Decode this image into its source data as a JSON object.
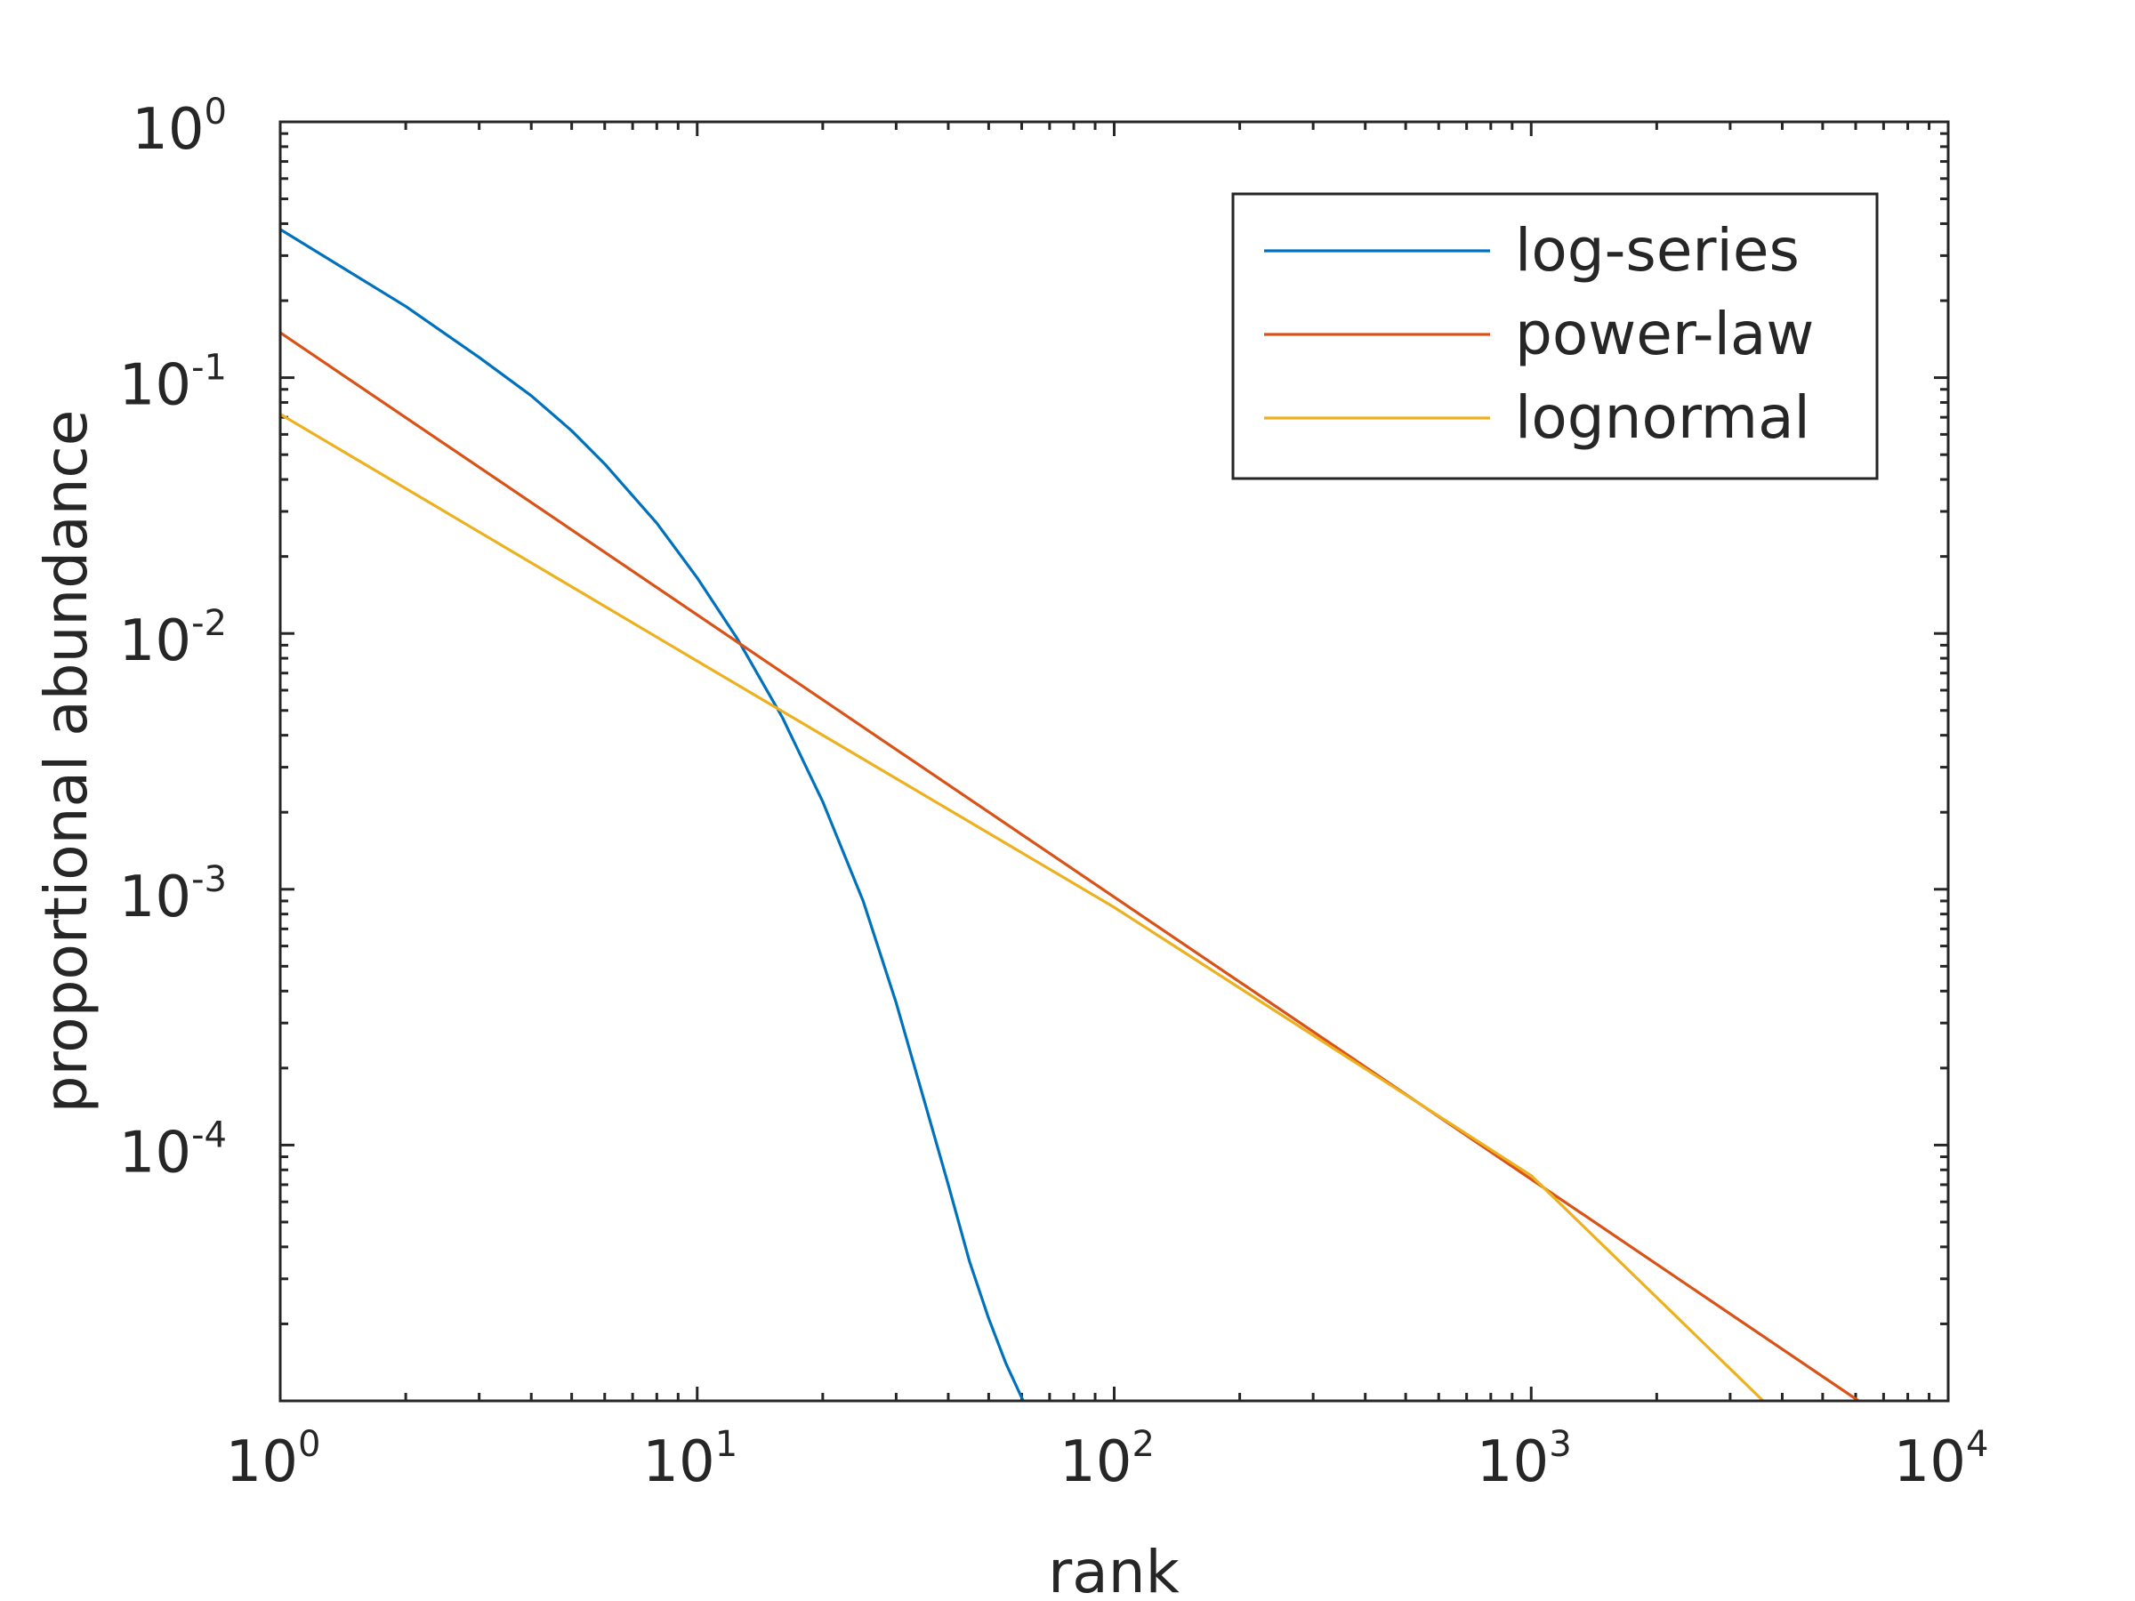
{
  "chart_data": {
    "type": "line",
    "title": "",
    "xlabel": "rank",
    "ylabel": "proportional abundance",
    "x_scale": "log",
    "y_scale": "log",
    "xlim": [
      1,
      10000
    ],
    "ylim": [
      1e-05,
      1
    ],
    "x_ticks": [
      {
        "base": "10",
        "exp": "0",
        "value": 1
      },
      {
        "base": "10",
        "exp": "1",
        "value": 10
      },
      {
        "base": "10",
        "exp": "2",
        "value": 100
      },
      {
        "base": "10",
        "exp": "3",
        "value": 1000
      },
      {
        "base": "10",
        "exp": "4",
        "value": 10000
      }
    ],
    "y_ticks": [
      {
        "base": "10",
        "exp": "0",
        "value": 1
      },
      {
        "base": "10",
        "exp": "-1",
        "value": 0.1
      },
      {
        "base": "10",
        "exp": "-2",
        "value": 0.01
      },
      {
        "base": "10",
        "exp": "-3",
        "value": 0.001
      },
      {
        "base": "10",
        "exp": "-4",
        "value": 0.0001
      }
    ],
    "grid": false,
    "legend_position": "top-right",
    "series": [
      {
        "name": "log-series",
        "color": "#0072BD",
        "x": [
          1,
          2,
          3,
          4,
          5,
          6,
          8,
          10,
          12.5,
          16,
          20,
          25,
          30,
          35,
          40,
          45,
          50,
          55,
          60.5
        ],
        "y": [
          0.38,
          0.19,
          0.12,
          0.085,
          0.062,
          0.046,
          0.027,
          0.0165,
          0.0095,
          0.0047,
          0.0022,
          0.0009,
          0.00036,
          0.00015,
          7e-05,
          3.5e-05,
          2.1e-05,
          1.4e-05,
          1e-05
        ]
      },
      {
        "name": "power-law",
        "color": "#D95319",
        "x": [
          1,
          6100
        ],
        "y": [
          0.15,
          1e-05
        ]
      },
      {
        "name": "lognormal",
        "color": "#EDB120",
        "x": [
          1,
          10,
          100,
          1000,
          3600
        ],
        "y": [
          0.072,
          0.0078,
          0.00085,
          7.6e-05,
          1e-05
        ]
      }
    ]
  }
}
